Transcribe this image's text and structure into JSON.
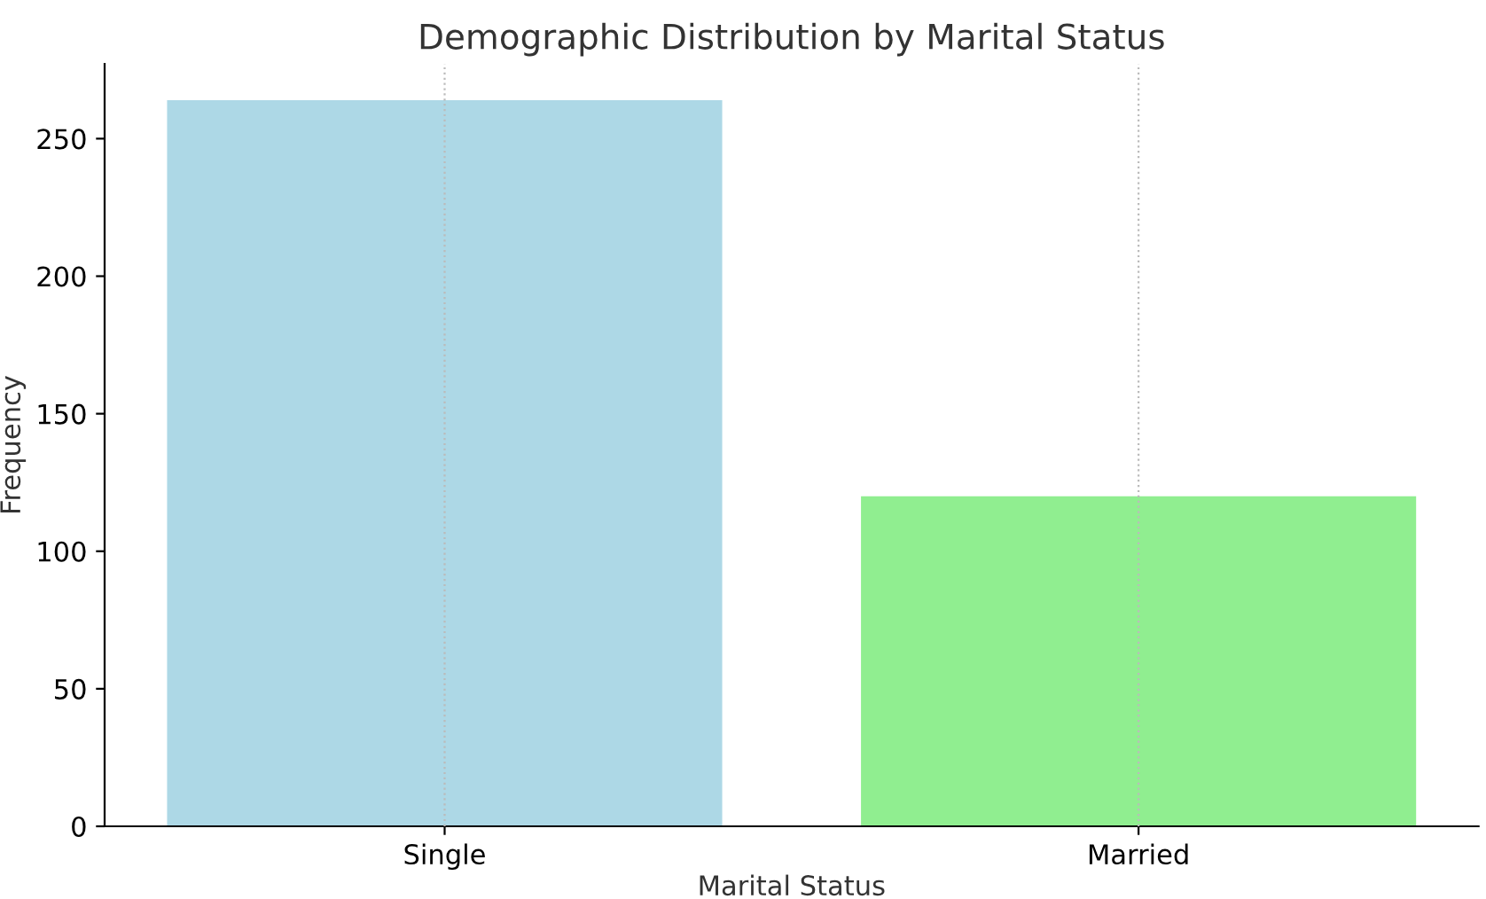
{
  "chart_data": {
    "type": "bar",
    "title": "Demographic Distribution by Marital Status",
    "xlabel": "Marital Status",
    "ylabel": "Frequency",
    "categories": [
      "Single",
      "Married"
    ],
    "values": [
      264,
      120
    ],
    "colors": [
      "#add8e6",
      "#90ee90"
    ],
    "ylim": [
      0,
      277.2
    ],
    "yticks": [
      0,
      50,
      100,
      150,
      200,
      250
    ],
    "grid": "x",
    "legend": false
  }
}
